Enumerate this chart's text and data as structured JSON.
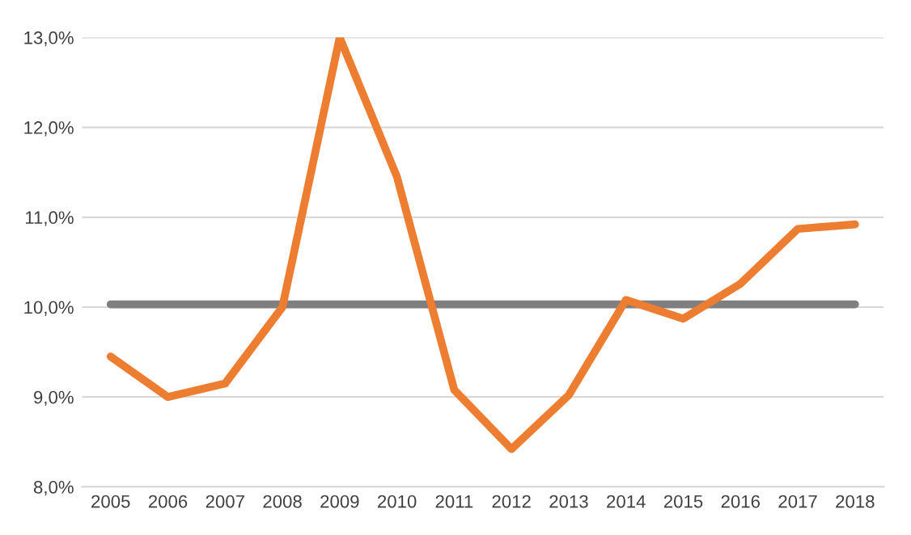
{
  "chart_data": {
    "type": "line",
    "categories": [
      "2005",
      "2006",
      "2007",
      "2008",
      "2009",
      "2010",
      "2011",
      "2012",
      "2013",
      "2014",
      "2015",
      "2016",
      "2017",
      "2018"
    ],
    "series": [
      {
        "color": "#7f7f7f",
        "values": [
          10.03,
          10.03,
          10.03,
          10.03,
          10.03,
          10.03,
          10.03,
          10.03,
          10.03,
          10.03,
          10.03,
          10.03,
          10.03,
          10.03
        ]
      },
      {
        "color": "#ed7d31",
        "values": [
          9.45,
          9.0,
          9.15,
          10.0,
          13.0,
          11.45,
          9.08,
          8.42,
          9.02,
          10.08,
          9.87,
          10.26,
          10.87,
          10.92
        ]
      }
    ],
    "ylim": [
      8,
      13
    ],
    "yticks": [
      {
        "value": 8,
        "label": "8,0%"
      },
      {
        "value": 9,
        "label": "9,0%"
      },
      {
        "value": 10,
        "label": "10,0%"
      },
      {
        "value": 11,
        "label": "11,0%"
      },
      {
        "value": 12,
        "label": "12,0%"
      },
      {
        "value": 13,
        "label": "13,0%"
      }
    ],
    "grid": "y",
    "marker": "none",
    "line_style": "solid"
  }
}
